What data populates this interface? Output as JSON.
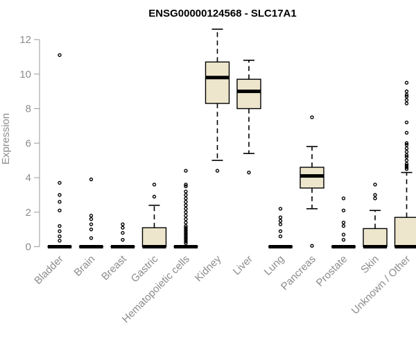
{
  "chart_data": {
    "type": "box",
    "title": "ENSG00000124568 - SLC17A1",
    "xlabel": "",
    "ylabel": "Expression",
    "ylim": [
      0,
      12.5
    ],
    "yticks": [
      0,
      2,
      4,
      6,
      8,
      10,
      12
    ],
    "box_fill": "#ede6cc",
    "categories": [
      "Bladder",
      "Brain",
      "Breast",
      "Gastric",
      "Hematopoietic cells",
      "Kidney",
      "Liver",
      "Lung",
      "Pancreas",
      "Prostate",
      "Skin",
      "Unknown / Other"
    ],
    "boxes": [
      {
        "name": "Bladder",
        "q1": 0,
        "median": 0,
        "q3": 0,
        "whisker_low": 0,
        "whisker_high": 0,
        "outliers": [
          11.1,
          3.7,
          3.0,
          2.6,
          2.1,
          1.2,
          0.9,
          0.6,
          0.35
        ]
      },
      {
        "name": "Brain",
        "q1": 0,
        "median": 0,
        "q3": 0,
        "whisker_low": 0,
        "whisker_high": 0,
        "outliers": [
          3.9,
          1.8,
          1.6,
          1.3,
          1.0,
          0.5
        ]
      },
      {
        "name": "Breast",
        "q1": 0,
        "median": 0,
        "q3": 0,
        "whisker_low": 0,
        "whisker_high": 0,
        "outliers": [
          1.3,
          1.1,
          0.8,
          0.4
        ]
      },
      {
        "name": "Gastric",
        "q1": 0,
        "median": 0,
        "q3": 1.1,
        "whisker_low": 0,
        "whisker_high": 2.4,
        "outliers": [
          3.6,
          2.9
        ]
      },
      {
        "name": "Hematopoietic cells",
        "q1": 0,
        "median": 0,
        "q3": 0,
        "whisker_low": 0,
        "whisker_high": 0,
        "outliers": [
          4.4,
          3.6,
          3.5,
          3.2,
          3.0,
          2.8,
          2.6,
          2.4,
          2.2,
          2.0,
          1.8,
          1.6,
          1.4,
          1.2,
          1.1,
          1.0,
          0.9,
          0.8,
          0.7,
          0.6,
          0.5,
          0.4,
          0.3,
          0.2
        ]
      },
      {
        "name": "Kidney",
        "q1": 8.3,
        "median": 9.8,
        "q3": 10.7,
        "whisker_low": 5.0,
        "whisker_high": 12.6,
        "outliers": [
          4.4
        ]
      },
      {
        "name": "Liver",
        "q1": 8.0,
        "median": 9.0,
        "q3": 9.7,
        "whisker_low": 5.4,
        "whisker_high": 10.8,
        "outliers": [
          4.3
        ]
      },
      {
        "name": "Lung",
        "q1": 0,
        "median": 0,
        "q3": 0,
        "whisker_low": 0,
        "whisker_high": 0,
        "outliers": [
          2.2,
          1.7,
          1.5,
          1.3,
          0.9,
          0.6
        ]
      },
      {
        "name": "Pancreas",
        "q1": 3.4,
        "median": 4.1,
        "q3": 4.6,
        "whisker_low": 2.2,
        "whisker_high": 5.8,
        "outliers": [
          7.5,
          0.05
        ]
      },
      {
        "name": "Prostate",
        "q1": 0,
        "median": 0,
        "q3": 0,
        "whisker_low": 0,
        "whisker_high": 0,
        "outliers": [
          2.8,
          2.1,
          1.4,
          1.2,
          0.7,
          0.4
        ]
      },
      {
        "name": "Skin",
        "q1": 0,
        "median": 0,
        "q3": 1.05,
        "whisker_low": 0,
        "whisker_high": 2.1,
        "outliers": [
          3.6,
          3.0,
          2.8
        ]
      },
      {
        "name": "Unknown / Other",
        "q1": 0,
        "median": 0,
        "q3": 1.7,
        "whisker_low": 0,
        "whisker_high": 4.3,
        "outliers": [
          9.5,
          9.0,
          8.8,
          8.7,
          8.5,
          8.3,
          7.2,
          6.6,
          6.0,
          5.9,
          5.7,
          5.5,
          5.3,
          5.2,
          5.0,
          4.8,
          4.7,
          4.6,
          4.5
        ]
      }
    ]
  }
}
